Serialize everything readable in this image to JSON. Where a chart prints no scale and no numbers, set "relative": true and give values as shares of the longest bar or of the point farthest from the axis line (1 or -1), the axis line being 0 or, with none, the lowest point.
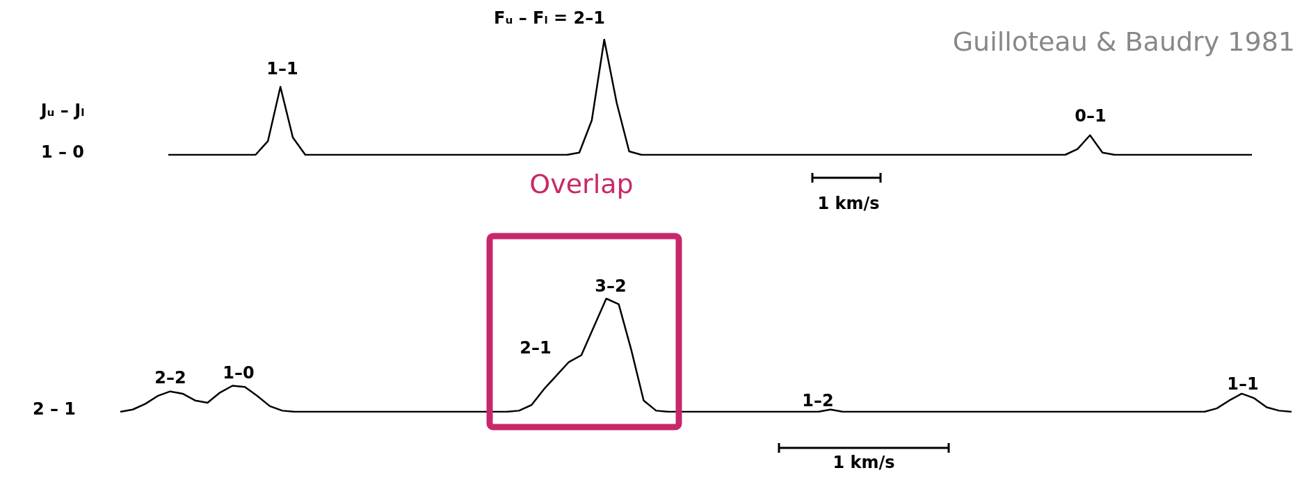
{
  "chart_data": [
    {
      "type": "line",
      "relative": true,
      "color": "#000000",
      "categories": [
        null,
        null,
        null,
        null,
        null,
        null,
        null,
        null,
        null,
        null,
        null,
        null,
        null,
        null,
        null,
        null,
        null,
        null,
        null,
        null,
        null,
        null,
        null,
        null,
        null,
        null,
        null,
        null,
        null,
        null,
        null,
        null,
        null,
        null,
        null,
        null,
        null,
        null,
        null,
        null,
        null,
        null,
        null,
        null,
        null,
        null,
        null,
        null,
        null,
        null,
        null,
        null,
        null,
        null,
        null,
        null,
        null,
        null,
        null,
        null,
        null,
        null,
        null,
        null,
        null,
        null,
        null,
        null,
        null,
        null,
        null,
        null,
        null,
        null,
        null,
        null,
        null,
        null,
        null,
        null,
        null,
        null,
        null,
        null,
        null,
        null,
        null,
        null
      ],
      "values": [
        0,
        0,
        0,
        0,
        0,
        0,
        0,
        0,
        0.12,
        0.59,
        0.15,
        0,
        0,
        0,
        0,
        0,
        0,
        0,
        0,
        0,
        0,
        0,
        0,
        0,
        0,
        0,
        0,
        0,
        0,
        0,
        0,
        0,
        0,
        0.02,
        0.3,
        1,
        0.45,
        0.03,
        0,
        0,
        0,
        0,
        0,
        0,
        0,
        0,
        0,
        0,
        0,
        0,
        0,
        0,
        0,
        0,
        0,
        0,
        0,
        0,
        0,
        0,
        0,
        0,
        0,
        0,
        0,
        0,
        0,
        0,
        0,
        0,
        0,
        0,
        0,
        0.05,
        0.17,
        0.02,
        0,
        0,
        0,
        0,
        0,
        0,
        0,
        0,
        0,
        0,
        0,
        0
      ],
      "annotations": [
        "Jᵤ – Jₗ",
        "1 – 0",
        "1–1",
        "Fᵤ – Fₗ = 2–1",
        "0–1",
        "1 km/s",
        "Guilloteau & Baudry 1981",
        "Overlap"
      ]
    },
    {
      "type": "line",
      "relative": true,
      "color": "#000000",
      "categories": [
        null,
        null,
        null,
        null,
        null,
        null,
        null,
        null,
        null,
        null,
        null,
        null,
        null,
        null,
        null,
        null,
        null,
        null,
        null,
        null,
        null,
        null,
        null,
        null,
        null,
        null,
        null,
        null,
        null,
        null,
        null,
        null,
        null,
        null,
        null,
        null,
        null,
        null,
        null,
        null,
        null,
        null,
        null,
        null,
        null,
        null,
        null,
        null,
        null,
        null,
        null,
        null,
        null,
        null,
        null,
        null,
        null,
        null,
        null,
        null,
        null,
        null,
        null,
        null,
        null,
        null,
        null,
        null,
        null,
        null,
        null,
        null,
        null,
        null,
        null,
        null,
        null,
        null,
        null,
        null,
        null,
        null,
        null,
        null,
        null,
        null,
        null,
        null,
        null,
        null,
        null,
        null,
        null,
        null,
        null
      ],
      "values": [
        0,
        0.02,
        0.07,
        0.14,
        0.18,
        0.16,
        0.1,
        0.08,
        0.17,
        0.23,
        0.22,
        0.14,
        0.05,
        0.01,
        0,
        0,
        0,
        0,
        0,
        0,
        0,
        0,
        0,
        0,
        0,
        0,
        0,
        0,
        0,
        0,
        0,
        0,
        0.01,
        0.06,
        0.2,
        0.32,
        0.44,
        0.5,
        0.75,
        1,
        0.95,
        0.55,
        0.1,
        0.01,
        0,
        0,
        0,
        0,
        0,
        0,
        0,
        0,
        0,
        0,
        0,
        0,
        0,
        0.02,
        0,
        0,
        0,
        0,
        0,
        0,
        0,
        0,
        0,
        0,
        0,
        0,
        0,
        0,
        0,
        0,
        0,
        0,
        0,
        0,
        0,
        0,
        0,
        0,
        0,
        0,
        0,
        0,
        0,
        0,
        0.03,
        0.1,
        0.16,
        0.12,
        0.04,
        0.01,
        0
      ],
      "annotations": [
        "2 – 1",
        "2–2",
        "1–0",
        "2–1",
        "3–2",
        "1–2",
        "1–1",
        "1 km/s"
      ]
    }
  ]
}
